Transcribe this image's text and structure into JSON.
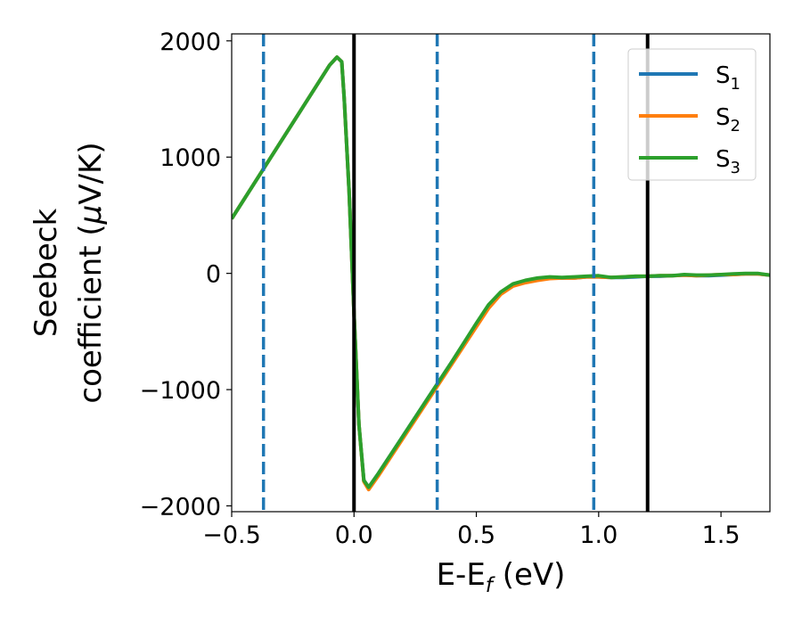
{
  "chart_data": {
    "type": "line",
    "xlabel": "E-E",
    "xlabel_sub": "f",
    "xlabel_unit": " (eV)",
    "ylabel_line1": "Seebeck",
    "ylabel_line2": "coefficient  (",
    "ylabel_mu": "μ",
    "ylabel_unit": "V/K)",
    "xlim": [
      -0.5,
      1.7
    ],
    "ylim": [
      -2050,
      2060
    ],
    "xticks": [
      -0.5,
      0.0,
      0.5,
      1.0,
      1.5
    ],
    "xtick_labels": [
      "−0.5",
      "0.0",
      "0.5",
      "1.0",
      "1.5"
    ],
    "yticks": [
      -2000,
      -1000,
      0,
      1000,
      2000
    ],
    "ytick_labels": [
      "−2000",
      "−1000",
      "0",
      "1000",
      "2000"
    ],
    "grid": false,
    "legend_position": "upper-right",
    "series": [
      {
        "name": "S",
        "subscript": "1",
        "color": "#1f77b4",
        "x": [
          -0.5,
          -0.3,
          -0.2,
          -0.1,
          -0.07,
          -0.05,
          -0.04,
          -0.02,
          0.0,
          0.02,
          0.04,
          0.06,
          0.1,
          0.2,
          0.3,
          0.4,
          0.5,
          0.55,
          0.6,
          0.65,
          0.7,
          0.75,
          0.8,
          0.85,
          0.9,
          0.95,
          1.0,
          1.05,
          1.1,
          1.15,
          1.2,
          1.25,
          1.3,
          1.35,
          1.4,
          1.45,
          1.5,
          1.55,
          1.6,
          1.65,
          1.7
        ],
        "y": [
          470,
          1130,
          1460,
          1790,
          1860,
          1820,
          1500,
          700,
          -350,
          -1300,
          -1780,
          -1840,
          -1720,
          -1400,
          -1080,
          -760,
          -440,
          -280,
          -170,
          -100,
          -70,
          -50,
          -40,
          -40,
          -40,
          -30,
          -30,
          -35,
          -35,
          -30,
          -25,
          -25,
          -20,
          -15,
          -20,
          -20,
          -15,
          -10,
          -5,
          -5,
          -15
        ]
      },
      {
        "name": "S",
        "subscript": "2",
        "color": "#ff7f0e",
        "x": [
          -0.5,
          -0.3,
          -0.2,
          -0.1,
          -0.07,
          -0.05,
          -0.04,
          -0.02,
          0.0,
          0.02,
          0.04,
          0.06,
          0.1,
          0.2,
          0.3,
          0.4,
          0.5,
          0.55,
          0.6,
          0.65,
          0.7,
          0.75,
          0.8,
          0.85,
          0.9,
          0.95,
          1.0,
          1.05,
          1.1,
          1.15,
          1.2,
          1.25,
          1.3,
          1.35,
          1.4,
          1.45,
          1.5,
          1.55,
          1.6,
          1.65,
          1.7
        ],
        "y": [
          470,
          1130,
          1460,
          1790,
          1860,
          1820,
          1500,
          700,
          -350,
          -1300,
          -1790,
          -1860,
          -1740,
          -1420,
          -1100,
          -780,
          -460,
          -300,
          -180,
          -110,
          -80,
          -60,
          -45,
          -40,
          -40,
          -30,
          -30,
          -35,
          -30,
          -25,
          -25,
          -20,
          -20,
          -15,
          -20,
          -15,
          -10,
          -10,
          -5,
          -5,
          -15
        ]
      },
      {
        "name": "S",
        "subscript": "3",
        "color": "#2ca02c",
        "x": [
          -0.5,
          -0.3,
          -0.2,
          -0.1,
          -0.07,
          -0.05,
          -0.04,
          -0.02,
          0.0,
          0.02,
          0.04,
          0.06,
          0.1,
          0.2,
          0.3,
          0.4,
          0.5,
          0.55,
          0.6,
          0.65,
          0.7,
          0.75,
          0.8,
          0.85,
          0.9,
          0.95,
          1.0,
          1.05,
          1.1,
          1.15,
          1.2,
          1.25,
          1.3,
          1.35,
          1.4,
          1.45,
          1.5,
          1.55,
          1.6,
          1.65,
          1.7
        ],
        "y": [
          470,
          1130,
          1460,
          1790,
          1860,
          1820,
          1500,
          700,
          -350,
          -1300,
          -1780,
          -1840,
          -1720,
          -1400,
          -1080,
          -760,
          -430,
          -270,
          -160,
          -90,
          -60,
          -40,
          -30,
          -35,
          -30,
          -25,
          -20,
          -35,
          -30,
          -25,
          -25,
          -20,
          -20,
          -10,
          -15,
          -15,
          -10,
          -5,
          0,
          0,
          -15
        ]
      }
    ],
    "vlines": [
      {
        "x": -0.37,
        "style": "dashed",
        "color": "#1f77b4"
      },
      {
        "x": 0.0,
        "style": "solid",
        "color": "#000000"
      },
      {
        "x": 0.34,
        "style": "dashed",
        "color": "#1f77b4"
      },
      {
        "x": 0.98,
        "style": "dashed",
        "color": "#1f77b4"
      },
      {
        "x": 1.2,
        "style": "solid",
        "color": "#000000"
      }
    ]
  }
}
